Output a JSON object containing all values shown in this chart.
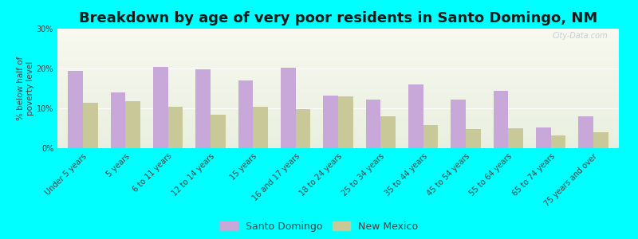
{
  "title": "Breakdown by age of very poor residents in Santo Domingo, NM",
  "ylabel": "% below half of\npoverty level",
  "categories": [
    "Under 5 years",
    "5 years",
    "6 to 11 years",
    "12 to 14 years",
    "15 years",
    "16 and 17 years",
    "18 to 24 years",
    "25 to 34 years",
    "35 to 44 years",
    "45 to 54 years",
    "55 to 64 years",
    "65 to 74 years",
    "75 years and over"
  ],
  "santo_domingo": [
    19.5,
    14.0,
    20.5,
    19.8,
    17.0,
    20.2,
    13.2,
    12.3,
    16.0,
    12.3,
    14.5,
    5.2,
    8.0
  ],
  "new_mexico": [
    11.5,
    11.8,
    10.5,
    8.5,
    10.5,
    9.8,
    13.0,
    8.0,
    5.8,
    4.8,
    5.0,
    3.2,
    4.0
  ],
  "sd_color": "#c8a8d8",
  "nm_color": "#c8c898",
  "background_outer": "#00ffff",
  "background_plot_top": "#f8f8ee",
  "background_plot_bottom": "#e8efe0",
  "ylim": [
    0,
    30
  ],
  "yticks": [
    0,
    10,
    20,
    30
  ],
  "ytick_labels": [
    "0%",
    "10%",
    "20%",
    "30%"
  ],
  "bar_width": 0.35,
  "title_fontsize": 13,
  "axis_label_fontsize": 7.5,
  "tick_fontsize": 7.0,
  "legend_fontsize": 9
}
